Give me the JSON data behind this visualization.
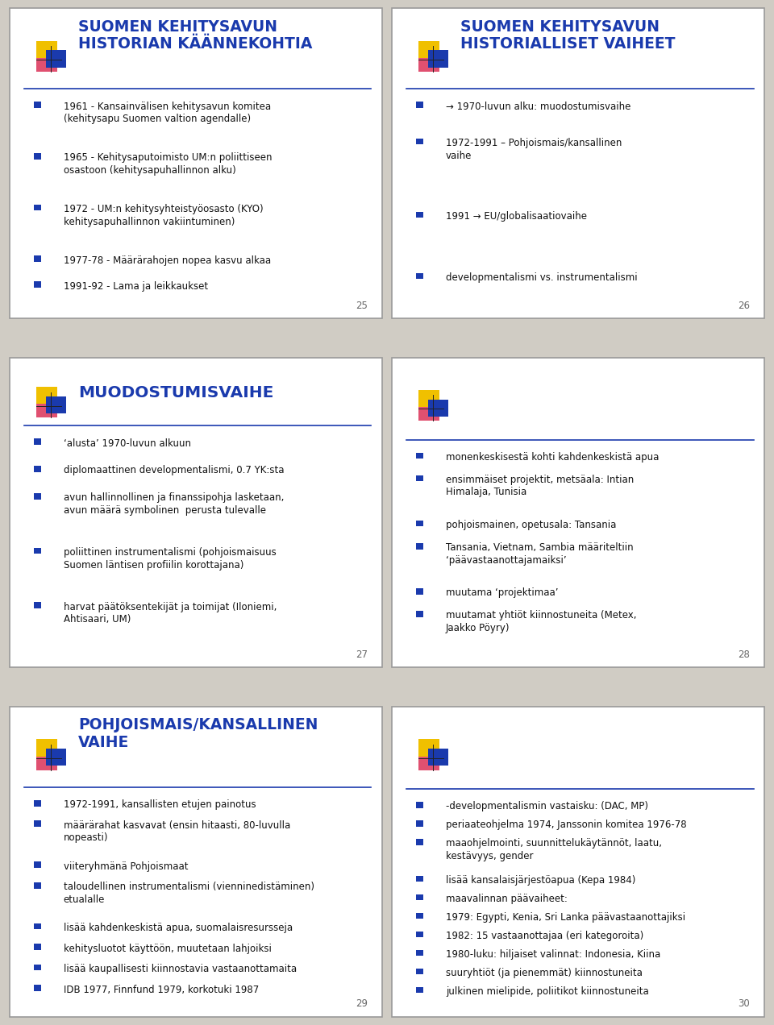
{
  "bg_color": "#d0ccc4",
  "slide_bg": "#ffffff",
  "title_color": "#1a3aad",
  "bullet_color": "#1a3aad",
  "text_color": "#111111",
  "page_num_color": "#666666",
  "slides": [
    {
      "title": "SUOMEN KEHITYSAVUN\nHISTORIAN KÄÄNNEKOHTIA",
      "page": "25",
      "bullets": [
        "1961 - Kansainvälisen kehitysavun komitea\n(kehitysapu Suomen valtion agendalle)",
        "1965 - Kehitysaputoimisto UM:n poliittiseen\nosastoon (kehitysapuhallinnon alku)",
        "1972 - UM:n kehitysyhteistyöosasto (KYO)\nkehitysapuhallinnon vakiintuminen)",
        "1977-78 - Määrärahojen nopea kasvu alkaa",
        "1991-92 - Lama ja leikkaukset"
      ]
    },
    {
      "title": "SUOMEN KEHITYSAVUN\nHISTORIALLISET VAIHEET",
      "page": "26",
      "bullets": [
        "→ 1970-luvun alku: muodostumisvaihe",
        "1972-1991 – Pohjoismais/kansallinen\nvaihe",
        "1991 → EU/globalisaatiovaihe",
        "",
        "developmentalismi vs. instrumentalismi"
      ]
    },
    {
      "title": "MUODOSTUMISVAIHE",
      "page": "27",
      "bullets": [
        "‘alusta’ 1970-luvun alkuun",
        "diplomaattinen developmentalismi, 0.7 YK:sta",
        "avun hallinnollinen ja finanssipohja lasketaan,\navun määrä symbolinen  perusta tulevalle",
        "poliittinen instrumentalismi (pohjoismaisuus\nSuomen läntisen profiilin korottajana)",
        "harvat päätöksentekijät ja toimijat (Iloniemi,\nAhtisaari, UM)"
      ]
    },
    {
      "title": "",
      "page": "28",
      "bullets": [
        "monenkeskisestä kohti kahdenkeskistä apua",
        "ensimmäiset projektit, metsäala: Intian\nHimalaja, Tunisia",
        "pohjoismainen, opetusala: Tansania",
        "Tansania, Vietnam, Sambia määriteltiin\n‘päävastaanottajamaiksi’",
        "muutama ‘projektimaa’",
        "muutamat yhtiöt kiinnostuneita (Metex,\nJaakko Pöyry)"
      ]
    },
    {
      "title": "POHJOISMAIS/KANSALLINEN\nVAIHE",
      "page": "29",
      "bullets": [
        "1972-1991, kansallisten etujen painotus",
        "määrärahat kasvavat (ensin hitaasti, 80-luvulla\nnopeasti)",
        "viiteryhmänä Pohjoismaat",
        "taloudellinen instrumentalismi (vienninedistäminen)\netualalle",
        "lisää kahdenkeskistä apua, suomalaisresursseja",
        "kehitysluotot käyttöön, muutetaan lahjoiksi",
        "lisää kaupallisesti kiinnostavia vastaanottamaita",
        "IDB 1977, Finnfund 1979, korkotuki 1987"
      ]
    },
    {
      "title": "",
      "page": "30",
      "bullets": [
        "-developmentalismin vastaisku: (DAC, MP)",
        "periaateohjelma 1974, Janssonin komitea 1976-78",
        "maaohjelmointi, suunnittelukäytännöt, laatu,\nkestävyys, gender",
        "lisää kansalaisjärjestöapua (Kepa 1984)",
        "maavalinnan päävaiheet:",
        "1979: Egypti, Kenia, Sri Lanka päävastaanottajiksi",
        "1982: 15 vastaanottajaa (eri kategoroita)",
        "1980-luku: hiljaiset valinnat: Indonesia, Kiina",
        "suuryhtiöt (ja pienemmät) kiinnostuneita",
        "julkinen mielipide, poliitikot kiinnostuneita"
      ]
    }
  ]
}
